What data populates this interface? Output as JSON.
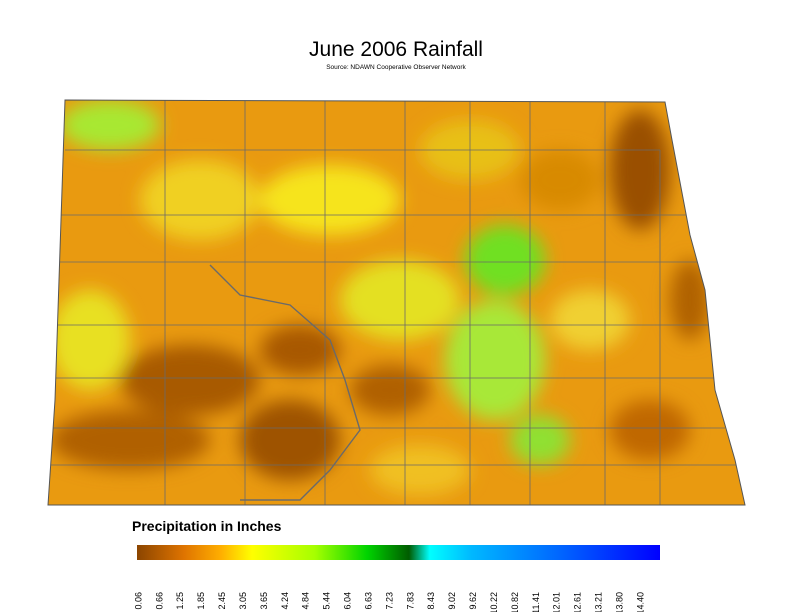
{
  "title": "June 2006 Rainfall",
  "subtitle": "Source: NDAWN Cooperative Observer Network",
  "legend": {
    "title": "Precipitation in Inches",
    "labels": [
      "0.06",
      "0.66",
      "1.25",
      "1.85",
      "2.45",
      "3.05",
      "3.65",
      "4.24",
      "4.84",
      "5.44",
      "6.04",
      "6.63",
      "7.23",
      "7.83",
      "8.43",
      "9.02",
      "9.62",
      "10.22",
      "10.82",
      "11.41",
      "12.01",
      "12.61",
      "13.21",
      "13.80",
      "14.40"
    ]
  }
}
